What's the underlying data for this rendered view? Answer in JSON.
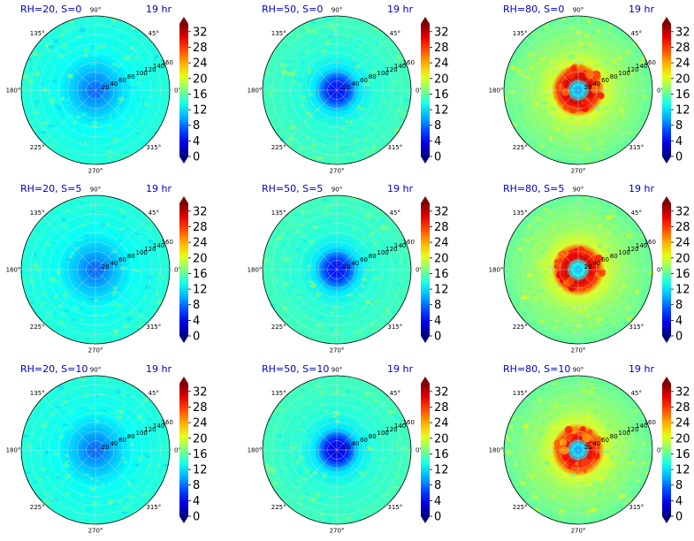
{
  "chart_data": {
    "type": "heatmap",
    "subtype": "polar",
    "time_label": "19 hr",
    "angle_ticks": [
      "0°",
      "45°",
      "90°",
      "135°",
      "180°",
      "225°",
      "270°",
      "315°"
    ],
    "radial_ticks": [
      20,
      40,
      60,
      80,
      100,
      120,
      140,
      160
    ],
    "colorbar": {
      "ticks": [
        0,
        4,
        8,
        12,
        16,
        20,
        24,
        28,
        32
      ],
      "range": [
        0,
        34
      ],
      "colormap": "jet",
      "extend": "both"
    },
    "panels": [
      {
        "title": "RH=20, S=0",
        "rh": 20,
        "s": 0,
        "center_value": 7,
        "background_value": 14,
        "ring_peak": 0
      },
      {
        "title": "RH=50, S=0",
        "rh": 50,
        "s": 0,
        "center_value": 4,
        "background_value": 15,
        "ring_peak": 0
      },
      {
        "title": "RH=80, S=0",
        "rh": 80,
        "s": 0,
        "center_value": 8,
        "background_value": 18,
        "ring_peak": 31
      },
      {
        "title": "RH=20, S=5",
        "rh": 20,
        "s": 5,
        "center_value": 7,
        "background_value": 14,
        "ring_peak": 0
      },
      {
        "title": "RH=50, S=5",
        "rh": 50,
        "s": 5,
        "center_value": 4,
        "background_value": 15,
        "ring_peak": 0
      },
      {
        "title": "RH=80, S=5",
        "rh": 80,
        "s": 5,
        "center_value": 9,
        "background_value": 18,
        "ring_peak": 31
      },
      {
        "title": "RH=20, S=10",
        "rh": 20,
        "s": 10,
        "center_value": 7,
        "background_value": 14,
        "ring_peak": 0
      },
      {
        "title": "RH=50, S=10",
        "rh": 50,
        "s": 10,
        "center_value": 3,
        "background_value": 15,
        "ring_peak": 0
      },
      {
        "title": "RH=80, S=10",
        "rh": 80,
        "s": 10,
        "center_value": 8,
        "background_value": 18,
        "ring_peak": 30
      }
    ]
  }
}
